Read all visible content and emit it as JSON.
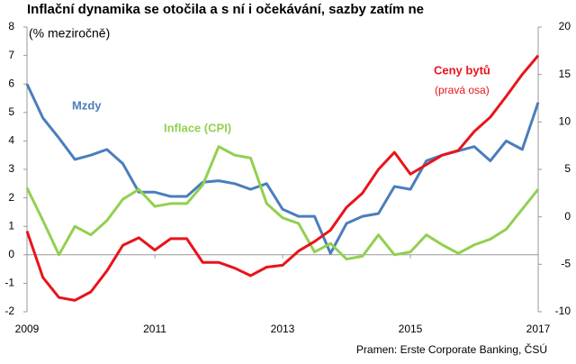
{
  "chart_data": {
    "type": "line",
    "title": "Inflační dynamika se otočila a s ní i očekávání, sazby zatím ne",
    "subtitle": "(% meziročně)",
    "source": "Pramen: Erste Corporate Banking, ČSÚ",
    "right_axis_note": "(pravá osa)",
    "x": [
      2009,
      2009.25,
      2009.5,
      2009.75,
      2010,
      2010.25,
      2010.5,
      2010.75,
      2011,
      2011.25,
      2011.5,
      2011.75,
      2012,
      2012.25,
      2012.5,
      2012.75,
      2013,
      2013.25,
      2013.5,
      2013.75,
      2014,
      2014.25,
      2014.5,
      2014.75,
      2015,
      2015.25,
      2015.5,
      2015.75,
      2016,
      2016.25,
      2016.5,
      2016.75,
      2017
    ],
    "xlim": [
      2009,
      2017
    ],
    "xticks": [
      2009,
      2011,
      2013,
      2015,
      2017
    ],
    "ylim": [
      -2,
      8
    ],
    "yticks": [
      -2,
      -1,
      0,
      1,
      2,
      3,
      4,
      5,
      6,
      7,
      8
    ],
    "y2lim": [
      -10,
      20
    ],
    "y2ticks": [
      -10,
      -5,
      0,
      5,
      10,
      15,
      20
    ],
    "series": [
      {
        "name": "Mzdy",
        "color": "#4a7ebb",
        "values": [
          6.0,
          4.8,
          4.1,
          3.35,
          3.5,
          3.7,
          3.2,
          2.2,
          2.2,
          2.05,
          2.05,
          2.55,
          2.6,
          2.5,
          2.3,
          2.5,
          1.6,
          1.35,
          1.35,
          0.05,
          1.1,
          1.35,
          1.45,
          2.4,
          2.3,
          3.3,
          3.5,
          3.65,
          3.8,
          3.3,
          4.0,
          3.7,
          5.35
        ]
      },
      {
        "name": "Inflace (CPI)",
        "color": "#92d050",
        "values": [
          2.35,
          1.2,
          0.0,
          1.0,
          0.7,
          1.2,
          1.95,
          2.3,
          1.7,
          1.8,
          1.8,
          2.45,
          3.8,
          3.5,
          3.4,
          1.8,
          1.3,
          1.1,
          0.1,
          0.4,
          -0.15,
          -0.05,
          0.7,
          0.0,
          0.1,
          0.7,
          0.35,
          0.05,
          0.35,
          0.55,
          0.9,
          1.6,
          2.3
        ]
      },
      {
        "name": "Ceny bytů",
        "color": "#e8141b",
        "axis": "y2",
        "values": [
          -1.5,
          -6.4,
          -8.5,
          -8.8,
          -7.9,
          -5.7,
          -3.0,
          -2.2,
          -3.5,
          -2.3,
          -2.3,
          -4.8,
          -4.8,
          -5.4,
          -6.2,
          -5.3,
          -5.1,
          -3.6,
          -2.6,
          -1.4,
          1.0,
          2.5,
          5.0,
          6.8,
          4.5,
          5.5,
          6.5,
          7.0,
          9.0,
          10.5,
          12.7,
          15.0,
          17.0
        ]
      }
    ]
  }
}
